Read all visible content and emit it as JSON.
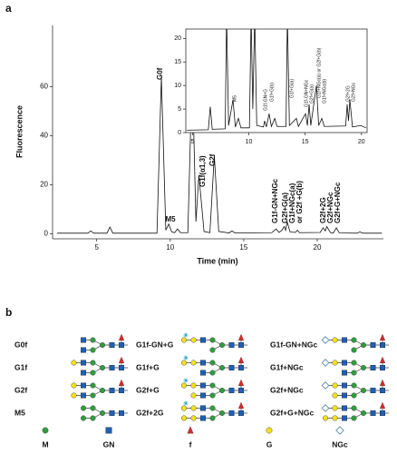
{
  "panels": [
    "a",
    "b"
  ],
  "chart_data": [
    {
      "type": "line",
      "x_label": "Time (min)",
      "y_label": "Fluorescence",
      "color": "#111111",
      "x": [
        2.3,
        4.4,
        4.6,
        4.8,
        5.7,
        5.9,
        6.1,
        9.1,
        9.4,
        9.7,
        9.9,
        10.1,
        10.3,
        10.5,
        10.7,
        11.2,
        11.5,
        11.75,
        11.95,
        12.3,
        12.7,
        13.0,
        13.3,
        14.0,
        14.2,
        14.4,
        16.9,
        17.2,
        17.4,
        17.6,
        17.75,
        17.85,
        17.95,
        18.15,
        18.5,
        18.65,
        18.8,
        20.2,
        20.4,
        20.55,
        20.65,
        20.9,
        21.1,
        21.3,
        21.5,
        22.7,
        22.9,
        23.1,
        24.4
      ],
      "values": [
        0.3,
        0.3,
        1.2,
        0.3,
        0.3,
        2.8,
        0.3,
        0.3,
        64,
        1.5,
        4,
        0.8,
        0.5,
        2,
        0.5,
        0.5,
        67,
        5,
        24,
        1,
        0.5,
        32,
        1,
        0.4,
        1.2,
        0.4,
        0.5,
        2,
        0.6,
        1.5,
        3,
        1.5,
        5,
        0.8,
        0.6,
        1.5,
        0.5,
        0.6,
        2.5,
        1.2,
        3,
        0.5,
        0.4,
        2.5,
        0.4,
        0.3,
        0.8,
        0.3,
        0.3
      ],
      "xlim": [
        2,
        24.5
      ],
      "ylim": [
        -2,
        85
      ],
      "xticks": [
        5,
        10,
        15,
        20
      ],
      "yticks": [
        0,
        20,
        40,
        60
      ],
      "annotations": [
        "G0f",
        "M5",
        "G1f(α1,6)",
        "G1f(α1,3)",
        "G2f",
        "G1f-GN+NGc",
        "G2f+G(a)",
        "G1f+NGc(a)",
        "or G2f +G(b)",
        "G2f+2G",
        "G2f+NGc",
        "G2f+G+NGc"
      ]
    },
    {
      "type": "line",
      "color": "#111111",
      "x": [
        4.5,
        6.4,
        6.57,
        6.75,
        7.9,
        8.02,
        8.2,
        8.59,
        8.8,
        9.07,
        9.3,
        10.05,
        10.2,
        10.35,
        10.52,
        10.7,
        11.3,
        11.4,
        11.55,
        11.8,
        12.0,
        12.3,
        12.5,
        13.3,
        13.42,
        13.6,
        14.22,
        14.4,
        15.03,
        15.2,
        15.35,
        15.5,
        16.0,
        16.2,
        16.48,
        16.7,
        18.6,
        18.73,
        18.85,
        18.97,
        19.2,
        19.94,
        20.4
      ],
      "values": [
        0.5,
        0.6,
        5.5,
        0.7,
        0.8,
        25,
        1.5,
        7,
        1.2,
        3,
        1,
        1,
        25,
        5,
        25,
        1.5,
        1.2,
        2.5,
        1.2,
        4,
        1.3,
        3,
        1.3,
        1.3,
        25,
        1.5,
        3,
        1.3,
        4,
        1.5,
        6,
        1.5,
        10,
        1.5,
        3,
        1.3,
        1.4,
        6,
        2.5,
        7,
        1.2,
        1.5,
        1
      ],
      "xlim": [
        4.4,
        20.5
      ],
      "ylim": [
        0,
        22
      ],
      "xticks": [
        5,
        10,
        15,
        20
      ],
      "yticks": [
        0,
        5,
        10,
        15,
        20
      ],
      "annotations": [
        "M5",
        "G1f-GN+G",
        "G1f+G(b)",
        "G1f+G(a)",
        "G1f-GN+NGc",
        "G2f+G(a)",
        "G1f+NGc(a) or G2f+G(b)",
        "G1f+NGc(b)",
        "G2f+2G",
        "G2f+NGc"
      ]
    }
  ],
  "glycans": [
    [
      "G0f",
      "G1f",
      "G2f",
      "M5"
    ],
    [
      "G1f-GN+G",
      "G1f+G",
      "G2f+G",
      "G2f+2G"
    ],
    [
      "G1f-GN+NGc",
      "G1f+NGc",
      "G2f+NGc",
      "G2f+G+NGc"
    ]
  ],
  "monosaccharide_key": [
    "M",
    "GN",
    "f",
    "G",
    "NGc"
  ]
}
